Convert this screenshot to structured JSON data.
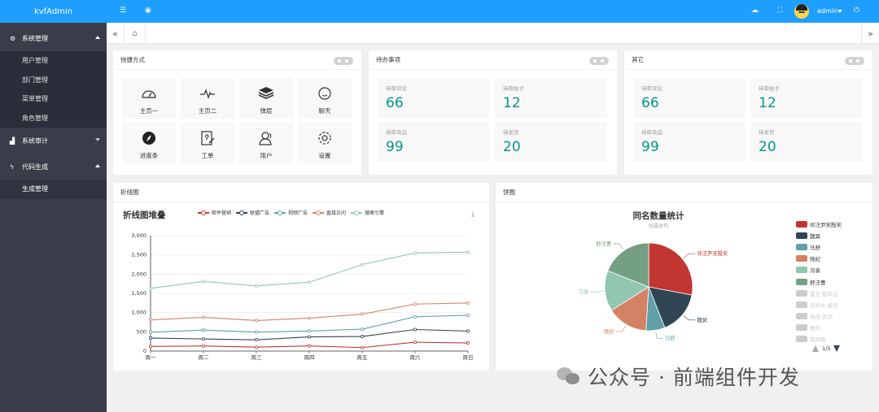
{
  "app": {
    "logo": "kvfAdmin"
  },
  "sidebar": {
    "groups": [
      {
        "label": "系统管理",
        "items": [
          "用户管理",
          "部门管理",
          "菜单管理",
          "角色管理"
        ]
      },
      {
        "label": "系统审计",
        "items": []
      },
      {
        "label": "代码生成",
        "items": [
          "生成管理"
        ]
      }
    ]
  },
  "header": {
    "user": "admin"
  },
  "quick": {
    "title": "快捷方式",
    "items": [
      {
        "label": "主页一",
        "icon": "dashboard-icon"
      },
      {
        "label": "主页二",
        "icon": "heartbeat-icon"
      },
      {
        "label": "弹层",
        "icon": "layers-icon"
      },
      {
        "label": "聊天",
        "icon": "chat-icon"
      },
      {
        "label": "进度条",
        "icon": "compass-icon"
      },
      {
        "label": "工单",
        "icon": "form-icon"
      },
      {
        "label": "用户",
        "icon": "user-icon"
      },
      {
        "label": "设置",
        "icon": "settings-icon"
      }
    ]
  },
  "todo": {
    "title": "待办事项",
    "stats": [
      {
        "label": "待审评论",
        "value": "66"
      },
      {
        "label": "待审帖子",
        "value": "12"
      },
      {
        "label": "待审商品",
        "value": "99"
      },
      {
        "label": "待发货",
        "value": "20"
      }
    ]
  },
  "other": {
    "title": "其它",
    "stats": [
      {
        "label": "待审评论",
        "value": "66"
      },
      {
        "label": "待审帖子",
        "value": "12"
      },
      {
        "label": "待审商品",
        "value": "99"
      },
      {
        "label": "待发货",
        "value": "20"
      }
    ]
  },
  "line_card": {
    "title": "折线图"
  },
  "pie_card": {
    "title": "饼图"
  },
  "watermark": "公众号 · 前端组件开发",
  "chart_data": [
    {
      "type": "line",
      "title": "折线图堆叠",
      "categories": [
        "周一",
        "周二",
        "周三",
        "周四",
        "周五",
        "周六",
        "周日"
      ],
      "ylim": [
        0,
        3000
      ],
      "yticks": [
        "0",
        "500",
        "1,000",
        "1,500",
        "2,000",
        "2,500",
        "3,000"
      ],
      "stacked": true,
      "grid": true,
      "legend_position": "top",
      "series": [
        {
          "name": "邮件营销",
          "color": "#c23531",
          "values": [
            120,
            132,
            101,
            134,
            90,
            230,
            210
          ]
        },
        {
          "name": "联盟广告",
          "color": "#2f4554",
          "values": [
            220,
            182,
            191,
            234,
            290,
            330,
            310
          ]
        },
        {
          "name": "视频广告",
          "color": "#61a0a8",
          "values": [
            150,
            232,
            201,
            154,
            190,
            330,
            410
          ]
        },
        {
          "name": "直接访问",
          "color": "#d48265",
          "values": [
            320,
            332,
            301,
            334,
            390,
            330,
            320
          ]
        },
        {
          "name": "搜索引擎",
          "color": "#91c7ae",
          "values": [
            820,
            932,
            901,
            934,
            1290,
            1330,
            1320
          ]
        }
      ]
    },
    {
      "type": "pie",
      "title": "同名数量统计",
      "subtitle": "纯属虚构",
      "legend_position": "right",
      "slices": [
        {
          "name": "祁汪尹宋殷宋",
          "value": 28,
          "color": "#c23531"
        },
        {
          "name": "魏冥",
          "value": 16,
          "color": "#2f4554"
        },
        {
          "name": "马舒",
          "value": 7,
          "color": "#61a0a8"
        },
        {
          "name": "贱纪",
          "value": 15,
          "color": "#d48265"
        },
        {
          "name": "冯袁",
          "value": 15,
          "color": "#91c7ae"
        },
        {
          "name": "舒汪曹",
          "value": 19,
          "color": "#749f83"
        }
      ],
      "legend_items": [
        {
          "name": "祁汪尹宋殷宋",
          "active": true,
          "color": "#c23531"
        },
        {
          "name": "魏冥",
          "active": true,
          "color": "#2f4554"
        },
        {
          "name": "马舒",
          "active": true,
          "color": "#61a0a8"
        },
        {
          "name": "贱纪",
          "active": true,
          "color": "#d48265"
        },
        {
          "name": "冯袁",
          "active": true,
          "color": "#91c7ae"
        },
        {
          "name": "舒汪曹",
          "active": true,
          "color": "#749f83"
        },
        {
          "name": "雷王·勤幸云",
          "active": false,
          "color": "#cccccc"
        },
        {
          "name": "何祝水·臧伏",
          "active": false,
          "color": "#cccccc"
        },
        {
          "name": "杨成·史凤",
          "active": false,
          "color": "#cccccc"
        },
        {
          "name": "喜乐",
          "active": false,
          "color": "#cccccc"
        },
        {
          "name": "葛邱珊",
          "active": false,
          "color": "#cccccc"
        }
      ],
      "pager": "1/5"
    }
  ]
}
